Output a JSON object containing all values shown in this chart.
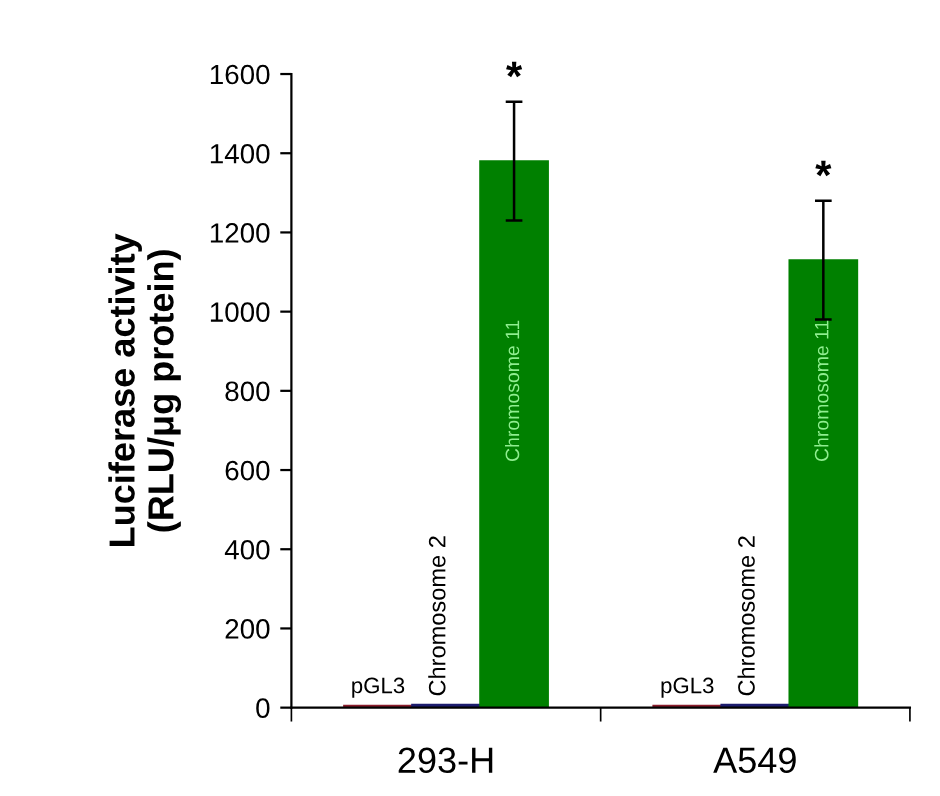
{
  "chart_data": {
    "type": "bar",
    "ylabel": "Luciferase activity\n(RLU/μg protein)",
    "categories": [
      "293-H",
      "A549"
    ],
    "series": [
      {
        "name": "pGL3",
        "color": "#8b1c2c",
        "values": [
          5,
          5
        ]
      },
      {
        "name": "Chromosome 2",
        "color": "#1c1c6e",
        "values": [
          8,
          8
        ],
        "errors": [
          null,
          null
        ]
      },
      {
        "name": "Chromosome 11",
        "color": "#008000",
        "values": [
          1380,
          1130
        ],
        "errors": [
          150,
          150
        ]
      }
    ],
    "annotations": [
      "*",
      "*"
    ],
    "ylim": [
      0,
      1600
    ],
    "yticks": [
      0,
      200,
      400,
      600,
      800,
      1000,
      1200,
      1400,
      1600
    ],
    "grid": false,
    "legend": false
  }
}
